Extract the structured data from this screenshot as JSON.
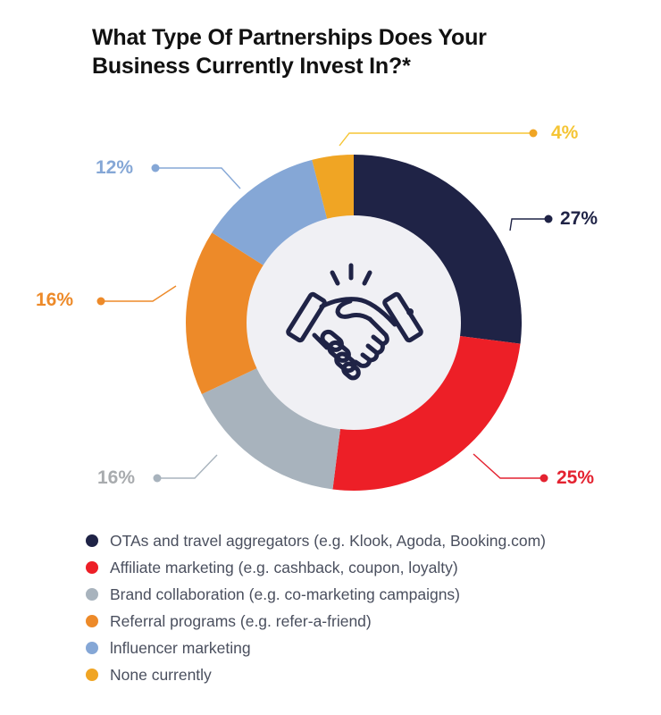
{
  "title": {
    "line1": "What Type Of Partnerships Does Your",
    "line2": "Business Currently Invest In?*"
  },
  "center_icon": "handshake-icon",
  "colors": {
    "center_fill": "#f0f0f4",
    "icon": "#1f2346"
  },
  "labels": [
    {
      "text": "27%",
      "color": "#1f2346"
    },
    {
      "text": "25%",
      "color": "#e42230"
    },
    {
      "text": "16%",
      "color": "#a8abae"
    },
    {
      "text": "16%",
      "color": "#ed8a29"
    },
    {
      "text": "12%",
      "color": "#85a7d6"
    },
    {
      "text": "4%",
      "color": "#f5c535"
    }
  ],
  "legend": [
    {
      "label": "OTAs and travel aggregators (e.g. Klook, Agoda, Booking.com)",
      "color": "#1f2346"
    },
    {
      "label": "Affiliate marketing (e.g. cashback, coupon, loyalty)",
      "color": "#ed1f27"
    },
    {
      "label": "Brand collaboration (e.g. co-marketing campaigns)",
      "color": "#a8b3bd"
    },
    {
      "label": "Referral programs (e.g. refer-a-friend)",
      "color": "#ed8a29"
    },
    {
      "label": "lnfluencer marketing",
      "color": "#85a7d6"
    },
    {
      "label": "None currently",
      "color": "#f0a524"
    }
  ],
  "chart_data": {
    "type": "pie",
    "subtype": "donut",
    "title": "What Type Of Partnerships Does Your Business Currently Invest In?*",
    "categories": [
      "OTAs and travel aggregators (e.g. Klook, Agoda, Booking.com)",
      "Affiliate marketing (e.g. cashback, coupon, loyalty)",
      "Brand collaboration (e.g. co-marketing campaigns)",
      "Referral programs (e.g. refer-a-friend)",
      "lnfluencer marketing",
      "None currently"
    ],
    "values": [
      27,
      25,
      16,
      16,
      12,
      4
    ],
    "value_labels": [
      "27%",
      "25%",
      "16%",
      "16%",
      "12%",
      "4%"
    ],
    "colors": [
      "#1f2346",
      "#ed1f27",
      "#a8b3bd",
      "#ed8a29",
      "#85a7d6",
      "#f0a524"
    ],
    "start_angle": "12 o'clock, clockwise",
    "legend_position": "bottom",
    "center_icon": "handshake"
  }
}
